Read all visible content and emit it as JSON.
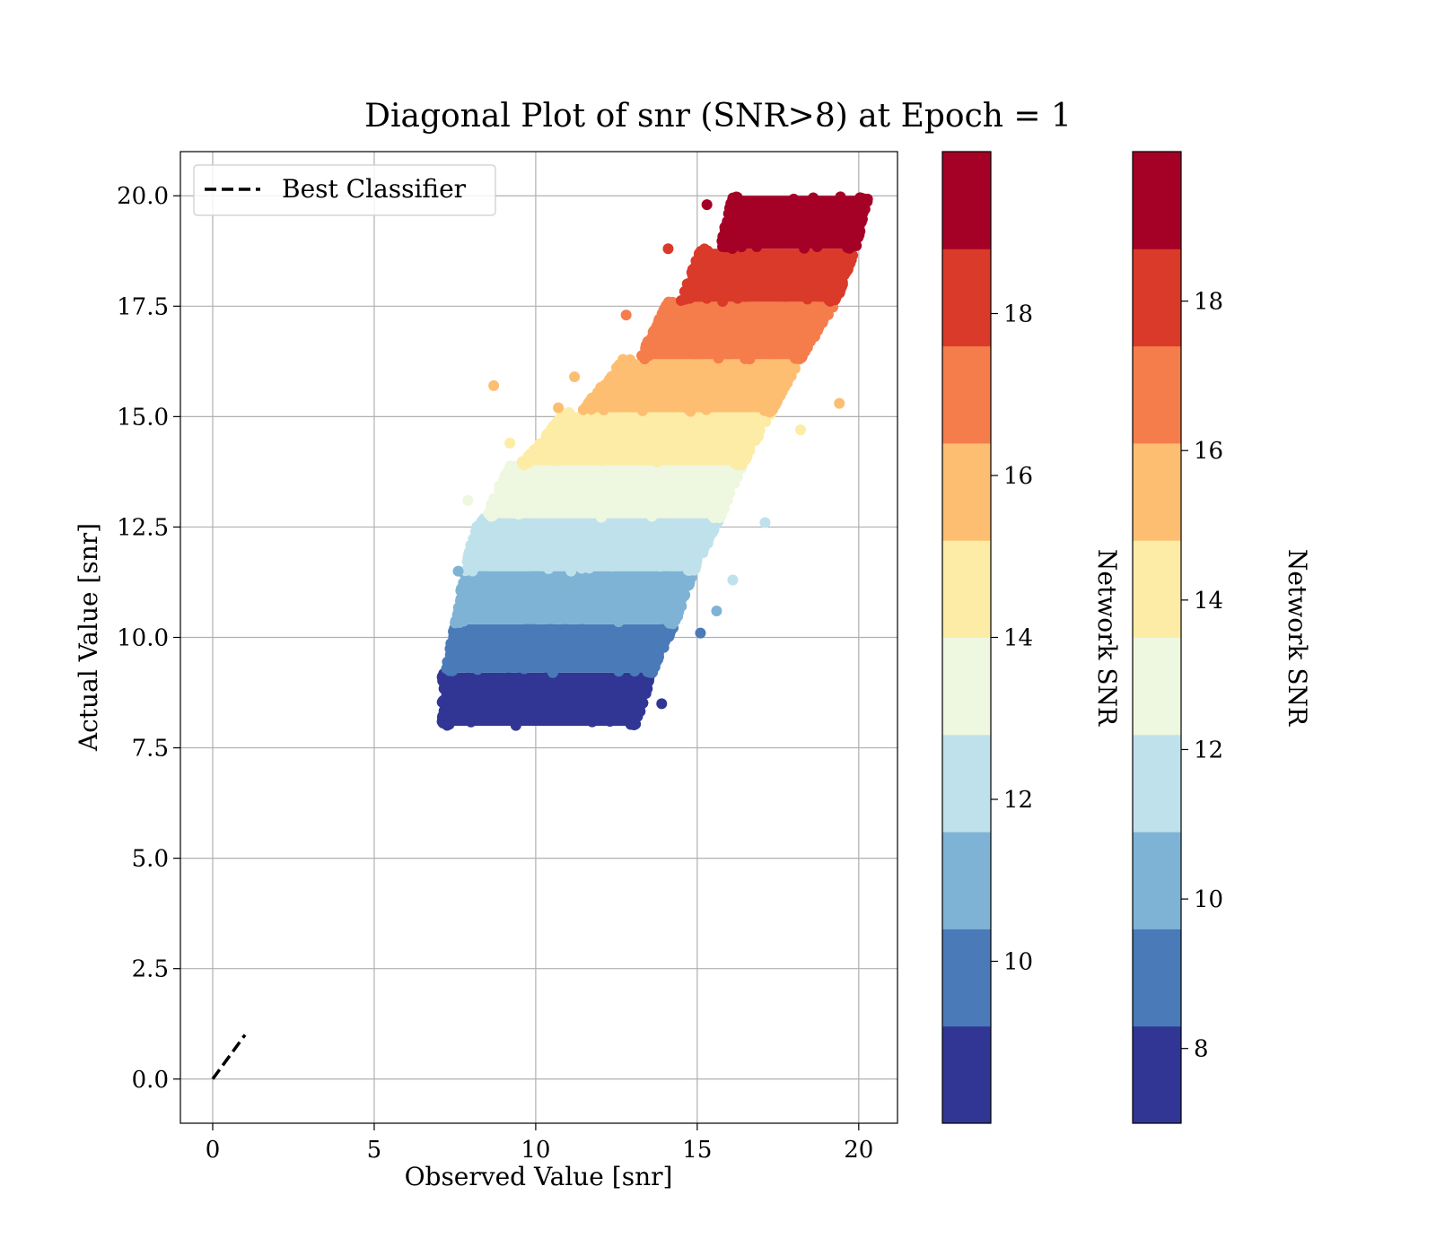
{
  "chart_data": {
    "type": "scatter",
    "title": "Diagonal Plot of snr (SNR>8) at Epoch = 1",
    "xlabel": "Observed Value [snr]",
    "ylabel": "Actual Value [snr]",
    "xlim": [
      -1,
      21.2
    ],
    "ylim": [
      -1,
      21
    ],
    "xticks": [
      0,
      5,
      10,
      15,
      20
    ],
    "xtick_labels": [
      "0",
      "5",
      "10",
      "15",
      "20"
    ],
    "yticks": [
      0,
      2.5,
      5,
      7.5,
      10,
      12.5,
      15,
      17.5,
      20
    ],
    "ytick_labels": [
      "0.0",
      "2.5",
      "5.0",
      "7.5",
      "10.0",
      "12.5",
      "15.0",
      "17.5",
      "20.0"
    ],
    "grid": true,
    "legend": {
      "placement": "upper-left",
      "entries": [
        {
          "label": "Best Classifier",
          "style": "dashed",
          "color": "#000000"
        }
      ]
    },
    "reference_line": {
      "label": "Best Classifier",
      "x": [
        0,
        1
      ],
      "y": [
        0,
        1
      ]
    },
    "scatter_bands": [
      {
        "y_range": [
          8.0,
          9.2
        ],
        "x_at_bottom": [
          7.2,
          13.0
        ],
        "x_at_top": [
          7.2,
          13.5
        ],
        "color": "#313695"
      },
      {
        "y_range": [
          9.2,
          10.3
        ],
        "x_at_bottom": [
          7.3,
          13.5
        ],
        "x_at_top": [
          7.6,
          14.2
        ],
        "color": "#4a7ab7"
      },
      {
        "y_range": [
          10.3,
          11.5
        ],
        "x_at_bottom": [
          7.6,
          14.2
        ],
        "x_at_top": [
          7.9,
          14.8
        ],
        "color": "#7fb3d5"
      },
      {
        "y_range": [
          11.5,
          12.7
        ],
        "x_at_bottom": [
          7.9,
          14.8
        ],
        "x_at_top": [
          8.3,
          15.6
        ],
        "color": "#bfe1ec"
      },
      {
        "y_range": [
          12.7,
          13.9
        ],
        "x_at_bottom": [
          8.5,
          15.6
        ],
        "x_at_top": [
          9.3,
          16.3
        ],
        "color": "#eef7df"
      },
      {
        "y_range": [
          13.9,
          15.1
        ],
        "x_at_bottom": [
          9.6,
          16.3
        ],
        "x_at_top": [
          11.0,
          17.2
        ],
        "color": "#fdeca5"
      },
      {
        "y_range": [
          15.1,
          16.3
        ],
        "x_at_bottom": [
          11.5,
          17.2
        ],
        "x_at_top": [
          12.8,
          18.1
        ],
        "color": "#fdbe72"
      },
      {
        "y_range": [
          16.3,
          17.6
        ],
        "x_at_bottom": [
          13.3,
          18.1
        ],
        "x_at_top": [
          14.2,
          19.2
        ],
        "color": "#f57d4c"
      },
      {
        "y_range": [
          17.6,
          18.8
        ],
        "x_at_bottom": [
          14.6,
          19.2
        ],
        "x_at_top": [
          15.2,
          19.8
        ],
        "color": "#da3a2a"
      },
      {
        "y_range": [
          18.8,
          20.0
        ],
        "x_at_bottom": [
          15.8,
          19.8
        ],
        "x_at_top": [
          16.2,
          20.2
        ],
        "color": "#a50026"
      }
    ],
    "outliers": [
      {
        "x": 8.7,
        "y": 15.7,
        "color": "#fdbe72"
      },
      {
        "x": 7.9,
        "y": 13.1,
        "color": "#eef7df"
      },
      {
        "x": 15.1,
        "y": 10.1,
        "color": "#4a7ab7"
      },
      {
        "x": 13.9,
        "y": 8.5,
        "color": "#313695"
      },
      {
        "x": 12.3,
        "y": 8.1,
        "color": "#313695"
      },
      {
        "x": 15.3,
        "y": 19.8,
        "color": "#a50026"
      },
      {
        "x": 14.1,
        "y": 18.8,
        "color": "#da3a2a"
      },
      {
        "x": 11.2,
        "y": 15.9,
        "color": "#fdbe72"
      },
      {
        "x": 10.7,
        "y": 15.2,
        "color": "#fdbe72"
      },
      {
        "x": 17.1,
        "y": 12.6,
        "color": "#bfe1ec"
      },
      {
        "x": 16.1,
        "y": 11.3,
        "color": "#bfe1ec"
      },
      {
        "x": 15.6,
        "y": 10.6,
        "color": "#7fb3d5"
      },
      {
        "x": 7.6,
        "y": 11.5,
        "color": "#7fb3d5"
      },
      {
        "x": 12.8,
        "y": 17.3,
        "color": "#f57d4c"
      },
      {
        "x": 18.2,
        "y": 14.7,
        "color": "#fdeca5"
      },
      {
        "x": 19.4,
        "y": 15.3,
        "color": "#fdbe72"
      },
      {
        "x": 9.2,
        "y": 14.4,
        "color": "#fdeca5"
      }
    ],
    "colorbars": [
      {
        "label": "Network SNR",
        "range": [
          8.0,
          20.0
        ],
        "ticks": [
          10,
          12,
          14,
          16,
          18
        ],
        "tick_labels": [
          "10",
          "12",
          "14",
          "16",
          "18"
        ],
        "colors": [
          "#313695",
          "#4a7ab7",
          "#7fb3d5",
          "#bfe1ec",
          "#eef7df",
          "#fdeca5",
          "#fdbe72",
          "#f57d4c",
          "#da3a2a",
          "#a50026"
        ]
      },
      {
        "label": "Network SNR",
        "range": [
          7.0,
          20.0
        ],
        "ticks": [
          8,
          10,
          12,
          14,
          16,
          18
        ],
        "tick_labels": [
          "8",
          "10",
          "12",
          "14",
          "16",
          "18"
        ],
        "colors": [
          "#313695",
          "#4a7ab7",
          "#7fb3d5",
          "#bfe1ec",
          "#eef7df",
          "#fdeca5",
          "#fdbe72",
          "#f57d4c",
          "#da3a2a",
          "#a50026"
        ]
      }
    ]
  }
}
